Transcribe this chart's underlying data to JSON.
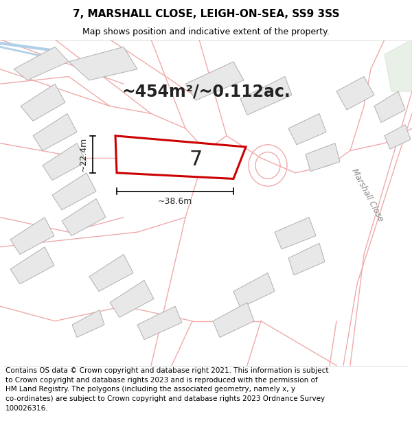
{
  "title": "7, MARSHALL CLOSE, LEIGH-ON-SEA, SS9 3SS",
  "subtitle": "Map shows position and indicative extent of the property.",
  "footer_line1": "Contains OS data © Crown copyright and database right 2021. This information is subject",
  "footer_line2": "to Crown copyright and database rights 2023 and is reproduced with the permission of",
  "footer_line3": "HM Land Registry. The polygons (including the associated geometry, namely x, y",
  "footer_line4": "co-ordinates) are subject to Crown copyright and database rights 2023 Ordnance Survey",
  "footer_line5": "100026316.",
  "area_label": "~454m²/~0.112ac.",
  "dim_height_label": "~22.4m",
  "dim_width_label": "~38.6m",
  "property_number": "7",
  "road_label": "Marshall Close",
  "map_bg_color": "#ffffff",
  "building_fill": "#e8e8e8",
  "building_edge": "#b0b0b0",
  "road_line_color": "#f0aaaa",
  "subject_poly_edge": "#cc0000",
  "subject_poly_lw": 2.2,
  "building_lw": 0.7,
  "road_lw": 1.0,
  "title_fontsize": 11,
  "subtitle_fontsize": 9,
  "footer_fontsize": 7.5,
  "area_fontsize": 17,
  "dim_fontsize": 9,
  "property_num_fontsize": 22,
  "road_label_fontsize": 8.5
}
